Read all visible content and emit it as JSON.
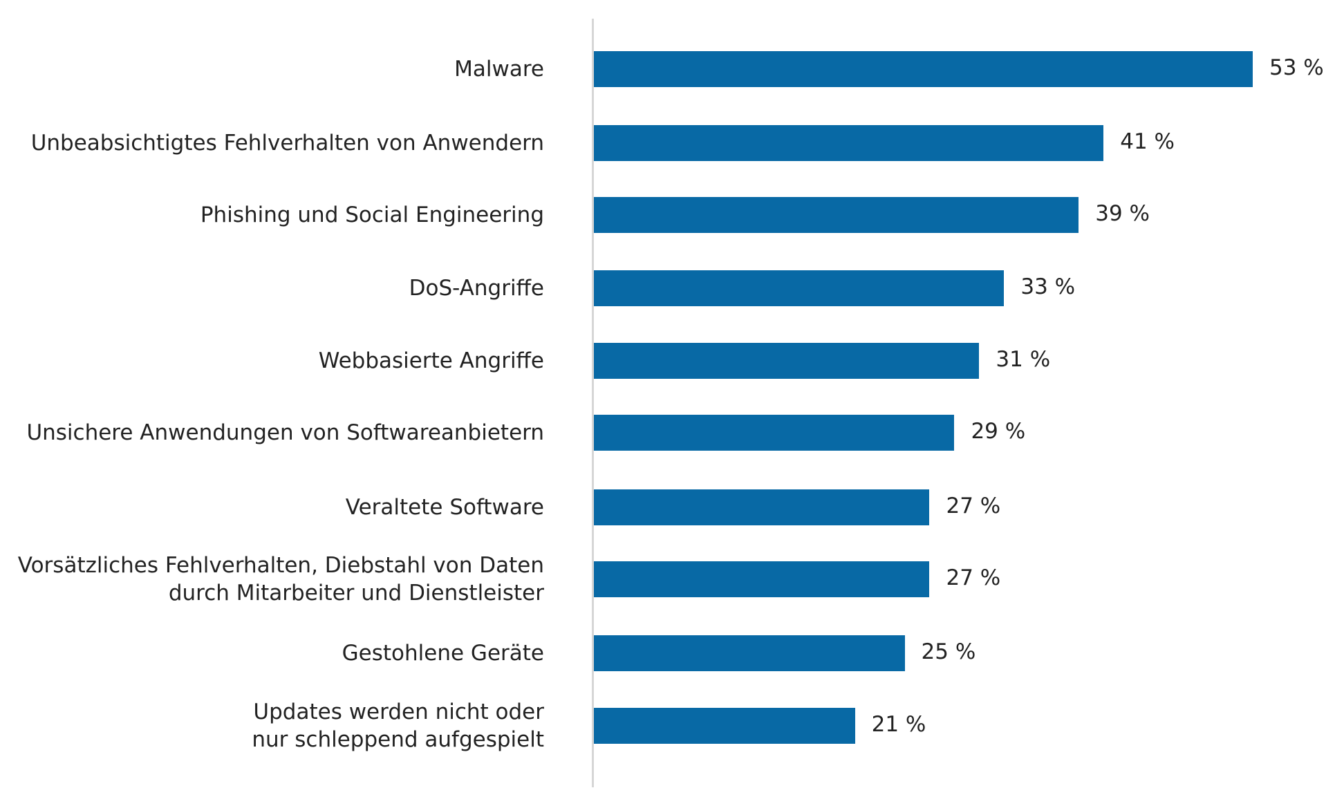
{
  "chart_data": {
    "type": "bar",
    "orientation": "horizontal",
    "categories": [
      "Malware",
      "Unbeabsichtigtes Fehlverhalten von Anwendern",
      "Phishing und Social Engineering",
      "DoS-Angriffe",
      "Webbasierte Angriffe",
      "Unsichere Anwendungen von Softwareanbietern",
      "Veraltete Software",
      "Vorsätzliches Fehlverhalten, Diebstahl von Daten\ndurch Mitarbeiter und Dienstleister",
      "Gestohlene Geräte",
      "Updates werden nicht oder\nnur schleppend aufgespielt"
    ],
    "values": [
      53,
      41,
      39,
      33,
      31,
      29,
      27,
      27,
      25,
      21
    ],
    "value_labels": [
      "53 %",
      "41 %",
      "39 %",
      "33 %",
      "31 %",
      "29 %",
      "27 %",
      "27 %",
      "25 %",
      "21 %"
    ],
    "unit": "%",
    "xlim": [
      0,
      53
    ],
    "grid": false,
    "legend": "none",
    "bar_color": "#0869a5",
    "axis_color": "#d6d6d6"
  }
}
